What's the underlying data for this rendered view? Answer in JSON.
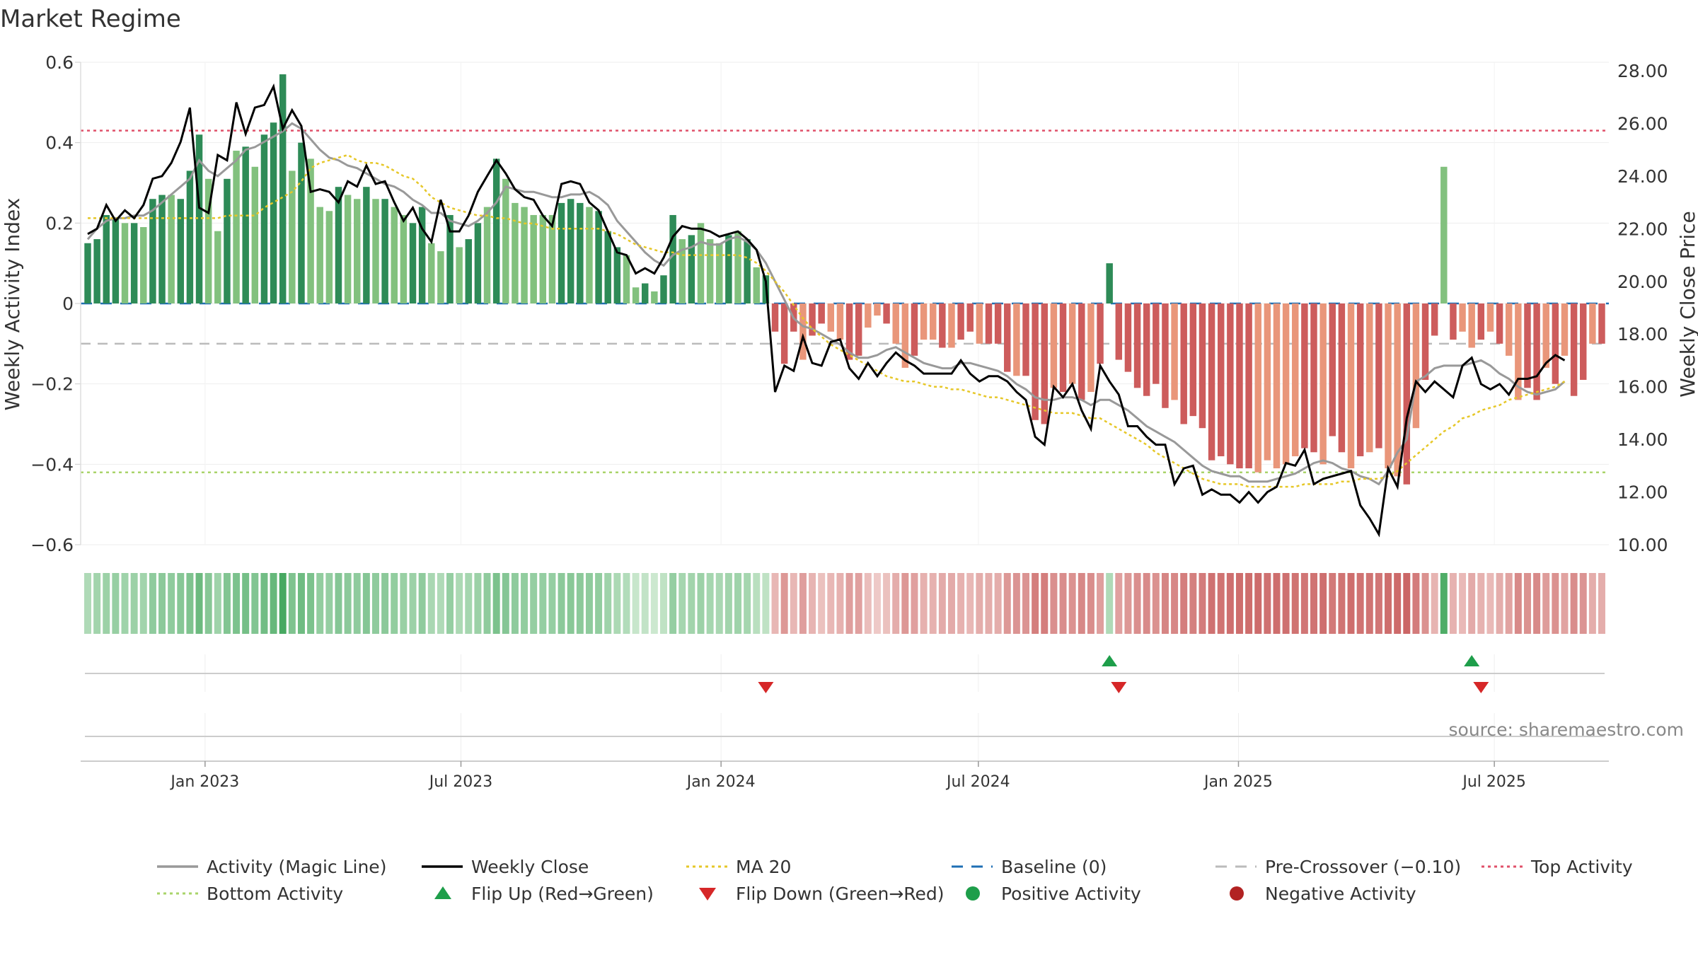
{
  "chart_data": {
    "type": "bar",
    "title": "Market Regime",
    "ylabel_left": "Weekly Activity Index",
    "ylabel_right": "Weekly Close Price",
    "source": "source: sharemaestro.com",
    "y_left": {
      "min": -0.6,
      "max": 0.6,
      "ticks": [
        {
          "v": 0.6,
          "label": "0.6"
        },
        {
          "v": 0.4,
          "label": "0.4"
        },
        {
          "v": 0.2,
          "label": "0.2"
        },
        {
          "v": 0,
          "label": "0"
        },
        {
          "v": -0.2,
          "label": "−0.2"
        },
        {
          "v": -0.4,
          "label": "−0.4"
        },
        {
          "v": -0.6,
          "label": "−0.6"
        }
      ]
    },
    "y_right": {
      "min": 10,
      "max": 28,
      "ticks": [
        {
          "v": 28,
          "label": "28.00"
        },
        {
          "v": 26,
          "label": "26.00"
        },
        {
          "v": 24,
          "label": "24.00"
        },
        {
          "v": 22,
          "label": "22.00"
        },
        {
          "v": 20,
          "label": "20.00"
        },
        {
          "v": 18,
          "label": "18.00"
        },
        {
          "v": 16,
          "label": "16.00"
        },
        {
          "v": 14,
          "label": "14.00"
        },
        {
          "v": 12,
          "label": "12.00"
        },
        {
          "v": 10,
          "label": "10.00"
        }
      ]
    },
    "x_range": {
      "start": "2022-10-10",
      "end": "2025-09-15"
    },
    "x_ticks": [
      {
        "date": "2023-01-01",
        "label": "Jan 2023"
      },
      {
        "date": "2023-07-01",
        "label": "Jul 2023"
      },
      {
        "date": "2024-01-01",
        "label": "Jan 2024"
      },
      {
        "date": "2024-07-01",
        "label": "Jul 2024"
      },
      {
        "date": "2025-01-01",
        "label": "Jan 2025"
      },
      {
        "date": "2025-07-01",
        "label": "Jul 2025"
      }
    ],
    "reference_lines": {
      "baseline": 0,
      "pre_crossover": -0.1,
      "top_activity": 0.43,
      "bottom_activity": -0.42
    },
    "activity_values": [
      0.15,
      0.16,
      0.22,
      0.21,
      0.2,
      0.2,
      0.19,
      0.26,
      0.27,
      0.27,
      0.26,
      0.33,
      0.42,
      0.31,
      0.18,
      0.31,
      0.38,
      0.39,
      0.34,
      0.42,
      0.45,
      0.57,
      0.33,
      0.4,
      0.36,
      0.24,
      0.23,
      0.29,
      0.27,
      0.26,
      0.29,
      0.26,
      0.26,
      0.24,
      0.22,
      0.2,
      0.24,
      0.15,
      0.13,
      0.22,
      0.14,
      0.16,
      0.2,
      0.24,
      0.36,
      0.31,
      0.25,
      0.24,
      0.22,
      0.22,
      0.22,
      0.25,
      0.26,
      0.25,
      0.24,
      0.23,
      0.18,
      0.14,
      0.12,
      0.04,
      0.05,
      0.03,
      0.07,
      0.22,
      0.16,
      0.17,
      0.2,
      0.16,
      0.15,
      0.17,
      0.18,
      0.16,
      0.09,
      0.07,
      -0.07,
      -0.15,
      -0.07,
      -0.14,
      -0.08,
      -0.05,
      -0.07,
      -0.09,
      -0.14,
      -0.13,
      -0.06,
      -0.03,
      -0.05,
      -0.1,
      -0.16,
      -0.13,
      -0.09,
      -0.09,
      -0.11,
      -0.11,
      -0.09,
      -0.07,
      -0.1,
      -0.1,
      -0.1,
      -0.17,
      -0.18,
      -0.18,
      -0.29,
      -0.3,
      -0.21,
      -0.22,
      -0.2,
      -0.24,
      -0.22,
      -0.15,
      0.1,
      -0.14,
      -0.17,
      -0.21,
      -0.23,
      -0.2,
      -0.26,
      -0.24,
      -0.3,
      -0.28,
      -0.31,
      -0.39,
      -0.38,
      -0.4,
      -0.41,
      -0.41,
      -0.42,
      -0.39,
      -0.41,
      -0.4,
      -0.38,
      -0.36,
      -0.37,
      -0.4,
      -0.33,
      -0.37,
      -0.41,
      -0.38,
      -0.37,
      -0.36,
      -0.41,
      -0.43,
      -0.45,
      -0.31,
      -0.19,
      -0.08,
      0.34,
      -0.09,
      -0.07,
      -0.11,
      -0.09,
      -0.07,
      -0.1,
      -0.13,
      -0.24,
      -0.21,
      -0.24,
      -0.16,
      -0.2,
      -0.13,
      -0.23,
      -0.19,
      -0.1,
      -0.1
    ],
    "activity_shades": [
      "m",
      "m",
      "m",
      "m",
      "l",
      "m",
      "l",
      "m",
      "m",
      "l",
      "m",
      "m",
      "m",
      "l",
      "l",
      "m",
      "l",
      "m",
      "l",
      "m",
      "m",
      "m",
      "l",
      "m",
      "l",
      "l",
      "l",
      "m",
      "l",
      "l",
      "m",
      "l",
      "m",
      "l",
      "l",
      "m",
      "m",
      "l",
      "l",
      "m",
      "l",
      "m",
      "m",
      "l",
      "m",
      "l",
      "l",
      "l",
      "l",
      "l",
      "l",
      "m",
      "m",
      "m",
      "l",
      "m",
      "m",
      "m",
      "l",
      "l",
      "m",
      "l",
      "m",
      "m",
      "l",
      "m",
      "l",
      "l",
      "l",
      "m",
      "l",
      "m",
      "l",
      "m",
      "m",
      "m",
      "m",
      "l",
      "m",
      "m",
      "l",
      "l",
      "m",
      "m",
      "l",
      "l",
      "m",
      "l",
      "l",
      "m",
      "l",
      "l",
      "m",
      "l",
      "m",
      "m",
      "l",
      "m",
      "m",
      "m",
      "l",
      "m",
      "m",
      "m",
      "l",
      "m",
      "l",
      "m",
      "l",
      "m",
      "m",
      "m",
      "m",
      "m",
      "m",
      "m",
      "m",
      "l",
      "m",
      "m",
      "m",
      "m",
      "m",
      "m",
      "m",
      "m",
      "l",
      "l",
      "l",
      "l",
      "l",
      "m",
      "m",
      "l",
      "m",
      "m",
      "l",
      "m",
      "l",
      "m",
      "l",
      "l",
      "m",
      "l",
      "m",
      "m",
      "l",
      "m",
      "l",
      "l",
      "m",
      "l",
      "m",
      "l",
      "l",
      "m",
      "m",
      "l",
      "m",
      "l",
      "m",
      "m",
      "l",
      "m",
      "l",
      "l"
    ],
    "weekly_close": [
      21.8,
      22.0,
      22.9,
      22.3,
      22.7,
      22.4,
      22.9,
      23.9,
      24.0,
      24.5,
      25.3,
      26.6,
      22.8,
      22.6,
      24.8,
      24.6,
      26.8,
      25.6,
      26.6,
      26.7,
      27.4,
      25.8,
      26.5,
      25.9,
      23.4,
      23.5,
      23.4,
      23.0,
      23.8,
      23.6,
      24.4,
      23.7,
      23.8,
      23.0,
      22.3,
      22.8,
      22.0,
      21.5,
      23.1,
      21.9,
      21.9,
      22.5,
      23.4,
      24.0,
      24.6,
      24.1,
      23.5,
      23.2,
      23.1,
      22.5,
      22.1,
      23.7,
      23.8,
      23.7,
      23.0,
      22.7,
      21.9,
      21.1,
      21.0,
      20.3,
      20.5,
      20.3,
      20.9,
      21.7,
      22.1,
      22.0,
      22.0,
      21.9,
      21.7,
      21.8,
      21.9,
      21.6,
      21.2,
      20.0,
      15.8,
      16.8,
      16.6,
      17.9,
      16.9,
      16.8,
      17.7,
      17.8,
      16.7,
      16.3,
      16.9,
      16.4,
      16.9,
      17.3,
      17.0,
      16.8,
      16.5,
      16.5,
      16.5,
      16.5,
      17.0,
      16.5,
      16.2,
      16.4,
      16.4,
      16.2,
      15.8,
      15.5,
      14.1,
      13.8,
      16.0,
      15.6,
      16.1,
      15.1,
      14.4,
      16.8,
      16.2,
      15.7,
      14.5,
      14.5,
      14.1,
      13.8,
      13.8,
      12.3,
      12.9,
      13.0,
      11.9,
      12.1,
      11.9,
      11.9,
      11.6,
      12.0,
      11.6,
      12.0,
      12.2,
      13.1,
      13.0,
      13.6,
      12.3,
      12.5,
      12.6,
      12.7,
      12.8,
      11.5,
      11.0,
      10.4,
      12.9,
      12.2,
      14.8,
      16.2,
      15.8,
      16.2,
      15.9,
      15.6,
      16.8,
      17.1,
      16.1,
      15.9,
      16.1,
      15.7,
      16.3,
      16.3,
      16.4,
      16.9,
      17.2,
      17.0
    ],
    "ma20": [
      22.4,
      22.4,
      22.4,
      22.4,
      22.4,
      22.4,
      22.4,
      22.4,
      22.4,
      22.4,
      22.4,
      22.4,
      22.4,
      22.4,
      22.4,
      22.5,
      22.5,
      22.5,
      22.5,
      22.8,
      23.0,
      23.2,
      23.4,
      23.8,
      24.3,
      24.5,
      24.6,
      24.7,
      24.8,
      24.6,
      24.5,
      24.5,
      24.4,
      24.2,
      24.0,
      23.9,
      23.6,
      23.2,
      23.0,
      22.8,
      22.7,
      22.6,
      22.5,
      22.5,
      22.4,
      22.4,
      22.3,
      22.2,
      22.2,
      22.1,
      22.0,
      22.0,
      22.0,
      22.0,
      22.0,
      22.0,
      21.9,
      21.8,
      21.6,
      21.4,
      21.3,
      21.2,
      21.1,
      21.1,
      21.0,
      21.0,
      21.0,
      21.0,
      21.0,
      21.0,
      21.0,
      20.9,
      20.7,
      20.4,
      20.0,
      19.6,
      19.1,
      18.6,
      18.2,
      17.9,
      17.6,
      17.4,
      17.2,
      17.0,
      16.8,
      16.6,
      16.4,
      16.3,
      16.2,
      16.2,
      16.1,
      16.0,
      16.0,
      15.9,
      15.9,
      15.8,
      15.7,
      15.6,
      15.6,
      15.5,
      15.4,
      15.3,
      15.2,
      15.1,
      15.0,
      15.0,
      15.0,
      14.9,
      14.8,
      14.8,
      14.6,
      14.4,
      14.2,
      14.0,
      13.8,
      13.5,
      13.3,
      13.1,
      12.9,
      12.7,
      12.5,
      12.4,
      12.3,
      12.3,
      12.3,
      12.2,
      12.2,
      12.2,
      12.2,
      12.2,
      12.2,
      12.3,
      12.3,
      12.3,
      12.3,
      12.4,
      12.4,
      12.5,
      12.5,
      12.5,
      12.6,
      12.8,
      13.1,
      13.4,
      13.7,
      14.0,
      14.3,
      14.5,
      14.8,
      14.9,
      15.1,
      15.2,
      15.3,
      15.5,
      15.6,
      15.7,
      15.8,
      15.9,
      16.0,
      16.2
    ],
    "magic_line": [
      21.6,
      22.0,
      22.3,
      22.4,
      22.4,
      22.5,
      22.5,
      22.7,
      23.0,
      23.3,
      23.6,
      23.9,
      24.6,
      24.2,
      24.0,
      24.3,
      24.6,
      25.0,
      25.1,
      25.3,
      25.5,
      25.7,
      26.0,
      25.8,
      25.4,
      25.0,
      24.7,
      24.6,
      24.4,
      24.3,
      24.1,
      23.9,
      23.7,
      23.6,
      23.4,
      23.1,
      22.9,
      22.6,
      22.6,
      22.3,
      22.2,
      22.1,
      22.3,
      22.6,
      23.0,
      23.6,
      23.5,
      23.4,
      23.4,
      23.3,
      23.2,
      23.2,
      23.3,
      23.3,
      23.4,
      23.2,
      22.9,
      22.3,
      21.9,
      21.5,
      21.1,
      20.8,
      20.6,
      21.0,
      21.2,
      21.3,
      21.5,
      21.4,
      21.4,
      21.6,
      21.7,
      21.5,
      21.2,
      20.7,
      20.0,
      19.3,
      18.6,
      18.3,
      18.2,
      18.0,
      17.8,
      17.6,
      17.3,
      17.1,
      17.1,
      17.2,
      17.4,
      17.5,
      17.3,
      17.1,
      16.9,
      16.8,
      16.7,
      16.7,
      16.9,
      16.9,
      16.8,
      16.7,
      16.6,
      16.4,
      16.1,
      15.9,
      15.6,
      15.5,
      15.5,
      15.6,
      15.6,
      15.5,
      15.3,
      15.5,
      15.5,
      15.3,
      15.1,
      14.8,
      14.5,
      14.3,
      14.1,
      13.9,
      13.6,
      13.3,
      13.0,
      12.8,
      12.7,
      12.6,
      12.6,
      12.4,
      12.4,
      12.4,
      12.5,
      12.6,
      12.7,
      12.9,
      13.1,
      13.2,
      13.1,
      12.9,
      12.8,
      12.6,
      12.5,
      12.3,
      12.8,
      13.5,
      14.0,
      16.2,
      16.4,
      16.7,
      16.8,
      16.8,
      16.8,
      16.9,
      17.0,
      16.8,
      16.5,
      16.3,
      16.0,
      15.8,
      15.7,
      15.8,
      15.9,
      16.2
    ],
    "regime_strip_intensity": [
      0.3,
      0.38,
      0.42,
      0.45,
      0.4,
      0.42,
      0.38,
      0.5,
      0.52,
      0.5,
      0.55,
      0.6,
      0.72,
      0.55,
      0.4,
      0.58,
      0.62,
      0.66,
      0.58,
      0.68,
      0.75,
      0.95,
      0.6,
      0.7,
      0.62,
      0.48,
      0.46,
      0.56,
      0.52,
      0.5,
      0.56,
      0.5,
      0.52,
      0.48,
      0.44,
      0.42,
      0.5,
      0.34,
      0.3,
      0.46,
      0.32,
      0.36,
      0.42,
      0.5,
      0.62,
      0.56,
      0.5,
      0.48,
      0.46,
      0.46,
      0.46,
      0.52,
      0.54,
      0.52,
      0.5,
      0.48,
      0.4,
      0.32,
      0.28,
      0.15,
      0.18,
      0.12,
      0.2,
      0.46,
      0.36,
      0.38,
      0.42,
      0.36,
      0.34,
      0.38,
      0.4,
      0.36,
      0.24,
      0.2,
      0.3,
      0.55,
      0.3,
      0.5,
      0.32,
      0.22,
      0.3,
      0.35,
      0.5,
      0.48,
      0.25,
      0.15,
      0.22,
      0.38,
      0.55,
      0.48,
      0.35,
      0.35,
      0.4,
      0.4,
      0.35,
      0.3,
      0.38,
      0.38,
      0.38,
      0.55,
      0.58,
      0.58,
      0.75,
      0.76,
      0.62,
      0.64,
      0.6,
      0.68,
      0.64,
      0.5,
      0.3,
      0.48,
      0.55,
      0.62,
      0.66,
      0.6,
      0.7,
      0.68,
      0.76,
      0.74,
      0.78,
      0.86,
      0.85,
      0.88,
      0.89,
      0.89,
      0.9,
      0.86,
      0.89,
      0.88,
      0.85,
      0.82,
      0.84,
      0.88,
      0.8,
      0.84,
      0.89,
      0.85,
      0.84,
      0.82,
      0.89,
      0.92,
      0.95,
      0.78,
      0.6,
      0.32,
      0.9,
      0.34,
      0.28,
      0.4,
      0.34,
      0.28,
      0.38,
      0.46,
      0.66,
      0.6,
      0.66,
      0.52,
      0.6,
      0.46,
      0.64,
      0.58,
      0.38,
      0.38
    ],
    "flip_up_weeks": [
      110,
      149
    ],
    "flip_down_weeks": [
      73,
      111,
      150
    ],
    "legend": [
      {
        "label": "Activity (Magic Line)",
        "kind": "line-solid",
        "color": "#999999"
      },
      {
        "label": "Weekly Close",
        "kind": "line-solid",
        "color": "#000000"
      },
      {
        "label": "MA 20",
        "kind": "line-dotted",
        "color": "#e6c728"
      },
      {
        "label": "Baseline (0)",
        "kind": "line-dashed",
        "color": "#1f6fb4"
      },
      {
        "label": "Pre-Crossover (−0.10)",
        "kind": "line-dashed",
        "color": "#bbbbbb"
      },
      {
        "label": "Top Activity",
        "kind": "line-dotted",
        "color": "#e0506a"
      },
      {
        "label": "Bottom Activity",
        "kind": "line-dotted",
        "color": "#a9d46a"
      },
      {
        "label": "Flip Up (Red→Green)",
        "kind": "triangle-up",
        "color": "#1e9e4a"
      },
      {
        "label": "Flip Down (Green→Red)",
        "kind": "triangle-down",
        "color": "#d62728"
      },
      {
        "label": "Positive Activity",
        "kind": "dot",
        "color": "#1e9e4a"
      },
      {
        "label": "Negative Activity",
        "kind": "dot",
        "color": "#b22222"
      }
    ],
    "colors": {
      "pos_strong": "#2e8b57",
      "pos_light": "#82c17e",
      "neg_strong": "#cd5c5c",
      "neg_light": "#e9967a",
      "magic_line": "#999999",
      "close": "#000000",
      "ma20": "#e6c728",
      "baseline": "#1f6fb4",
      "pre_crossover": "#bbbbbb",
      "top_activity": "#e0506a",
      "bottom_activity": "#a9d46a",
      "flip_up": "#1e9e4a",
      "flip_down": "#d62728"
    }
  }
}
